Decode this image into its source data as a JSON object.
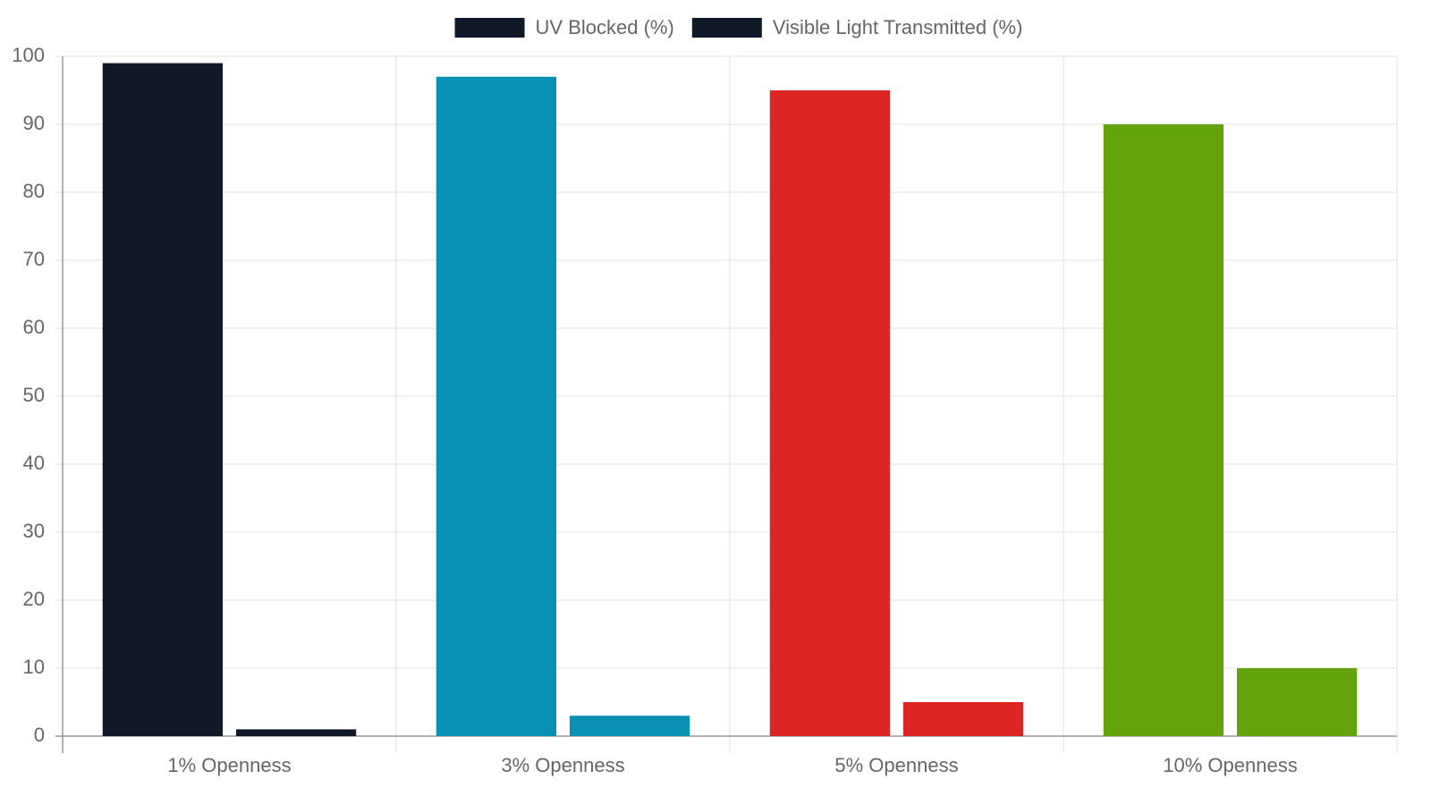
{
  "chart_data": {
    "type": "bar",
    "categories": [
      "1% Openness",
      "3% Openness",
      "5% Openness",
      "10% Openness"
    ],
    "series": [
      {
        "name": "UV Blocked (%)",
        "color": [
          "#111827",
          "#0891b2",
          "#dc2626",
          "#65a30d"
        ],
        "values": [
          99,
          97,
          95,
          90
        ]
      },
      {
        "name": "Visible Light Transmitted (%)",
        "color": [
          "#111827",
          "#0891b2",
          "#dc2626",
          "#65a30d"
        ],
        "values": [
          1,
          3,
          5,
          10
        ]
      }
    ],
    "ylim": [
      0,
      100
    ],
    "yticks": [
      0,
      10,
      20,
      30,
      40,
      50,
      60,
      70,
      80,
      90,
      100
    ],
    "grid": true,
    "legend": "top"
  }
}
